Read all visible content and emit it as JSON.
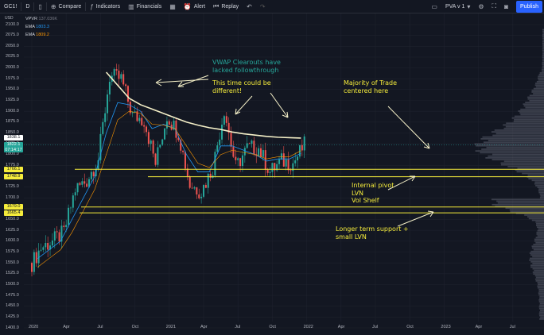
{
  "toolbar": {
    "symbol": "GC1!",
    "interval": "D",
    "compare": "Compare",
    "indicators": "Indicators",
    "financials": "Financials",
    "alert": "Alert",
    "replay": "Replay",
    "layout_name": "PVA v 1",
    "publish": "Publish"
  },
  "legend": {
    "vpvr": "VPVR",
    "vpvr_value": "137.036K",
    "ema1_label": "EMA",
    "ema1_value": "1803.3",
    "ema1_color": "#2196f3",
    "ema2_label": "EMA",
    "ema2_value": "1809.2",
    "ema2_color": "#ff9800"
  },
  "price_axis": {
    "currency": "USD",
    "ticks": [
      "2100.0",
      "2075.0",
      "2050.0",
      "2025.0",
      "2000.0",
      "1975.0",
      "1950.0",
      "1925.0",
      "1900.0",
      "1875.0",
      "1850.0",
      "1825.0",
      "1800.0",
      "1775.0",
      "1750.0",
      "1725.0",
      "1700.0",
      "1675.0",
      "1650.0",
      "1625.0",
      "1600.0",
      "1575.0",
      "1550.0",
      "1525.0",
      "1500.0",
      "1475.0",
      "1450.0",
      "1425.0",
      "1400.0"
    ]
  },
  "price_tags": [
    {
      "value": "1838.1",
      "bg": "#ffffff",
      "fg": "#131722"
    },
    {
      "value": "1822.1",
      "value2": "07:14:17",
      "bg": "#26a69a",
      "fg": "#ffffff"
    },
    {
      "value": "1766.1",
      "bg": "#f5ec3b",
      "fg": "#131722"
    },
    {
      "value": "1748.9",
      "bg": "#f5ec3b",
      "fg": "#131722"
    },
    {
      "value": "1679.0",
      "bg": "#f5ec3b",
      "fg": "#131722"
    },
    {
      "value": "1665.4",
      "bg": "#f5ec3b",
      "fg": "#131722"
    }
  ],
  "time_axis": {
    "labels": [
      "2020",
      "Apr",
      "Jul",
      "Oct",
      "2021",
      "Apr",
      "Jul",
      "Oct",
      "2022",
      "Apr",
      "Jul",
      "Oct",
      "2023",
      "Apr",
      "Jul"
    ]
  },
  "annotations": {
    "vwap_1": "VWAP Clearouts have",
    "vwap_2": "lacked followthrough",
    "diff_1": "This time could be",
    "diff_2": "different!",
    "majority_1": "Majority of Trade",
    "majority_2": "centered here",
    "pivot_1": "Internal pivot",
    "pivot_2": "LVN",
    "pivot_3": "Vol Shelf",
    "support_1": "Longer term support +",
    "support_2": "small LVN"
  },
  "colors": {
    "background": "#131722",
    "up_candle": "#26a69a",
    "down_candle": "#ef5350",
    "vwap": "#f5f0c8",
    "level_lines": "#f5ec3b",
    "annotation_text": "#f5ec3b",
    "annotation_teal": "#26a69a",
    "volume_profile": "#5d6170"
  },
  "chart_data": {
    "type": "candlestick",
    "symbol": "GC1!",
    "x": [
      "2020-01",
      "2020-02",
      "2020-03",
      "2020-04",
      "2020-05",
      "2020-06",
      "2020-07",
      "2020-08",
      "2020-09",
      "2020-10",
      "2020-11",
      "2020-12",
      "2021-01",
      "2021-02",
      "2021-03",
      "2021-04",
      "2021-05",
      "2021-06",
      "2021-07",
      "2021-08",
      "2021-09",
      "2021-10",
      "2021-11",
      "2021-12"
    ],
    "close": [
      1585,
      1600,
      1620,
      1720,
      1740,
      1790,
      1980,
      1975,
      1890,
      1880,
      1780,
      1890,
      1850,
      1730,
      1715,
      1770,
      1905,
      1770,
      1815,
      1815,
      1760,
      1785,
      1780,
      1822
    ],
    "ema_fast": [
      1560,
      1580,
      1600,
      1650,
      1700,
      1750,
      1850,
      1920,
      1915,
      1900,
      1860,
      1870,
      1860,
      1800,
      1760,
      1760,
      1820,
      1820,
      1810,
      1800,
      1785,
      1790,
      1790,
      1803
    ],
    "ema_slow": [
      1540,
      1560,
      1580,
      1620,
      1670,
      1720,
      1800,
      1880,
      1900,
      1895,
      1870,
      1868,
      1860,
      1820,
      1780,
      1770,
      1800,
      1810,
      1805,
      1800,
      1790,
      1795,
      1795,
      1809
    ],
    "vwap": [
      null,
      null,
      null,
      null,
      null,
      null,
      1990,
      1960,
      1930,
      1915,
      1905,
      1895,
      1885,
      1875,
      1868,
      1862,
      1858,
      1852,
      1848,
      1845,
      1842,
      1840,
      1839,
      1838
    ],
    "levels": [
      1766.1,
      1748.9,
      1679.0,
      1665.4
    ],
    "ylim": [
      1400,
      2100
    ],
    "last_price": 1822.1
  }
}
